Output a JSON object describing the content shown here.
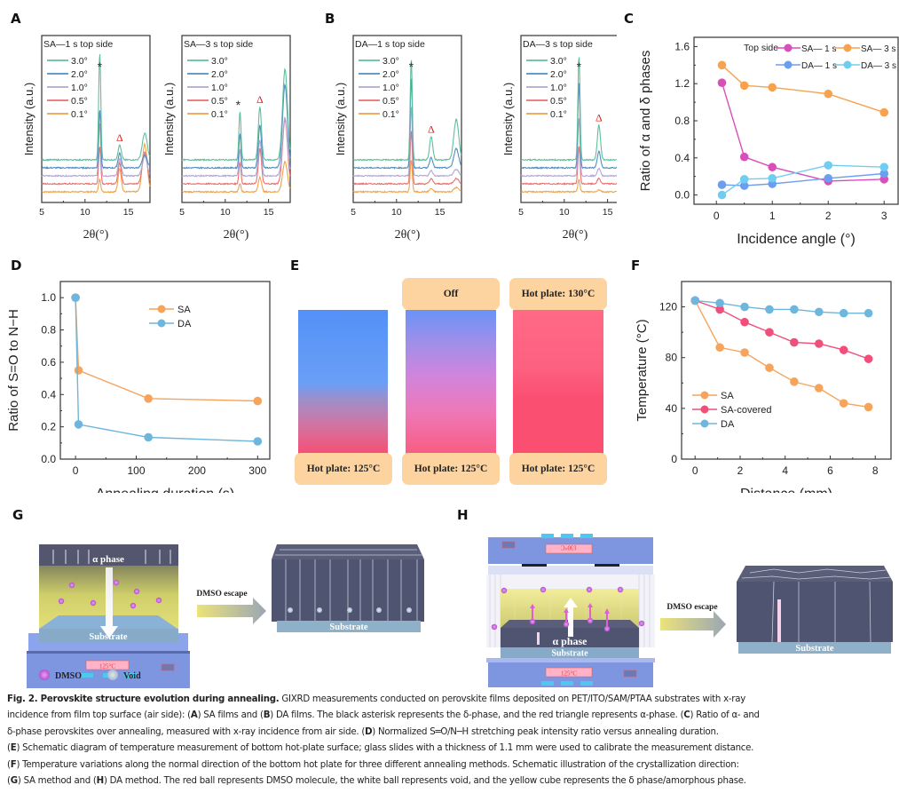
{
  "panels": {
    "A": "A",
    "B": "B",
    "C": "C",
    "D": "D",
    "E": "E",
    "F": "F",
    "G": "G",
    "H": "H"
  },
  "xrd_common": {
    "xlabel": "2θ(°)",
    "ylabel": "Intensity (a.u.)",
    "xticks": [
      "5",
      "10",
      "15"
    ],
    "legend": [
      {
        "label": "3.0°",
        "color": "#5fbf9c"
      },
      {
        "label": "2.0°",
        "color": "#4f8fc0"
      },
      {
        "label": "1.0°",
        "color": "#b3a6d6"
      },
      {
        "label": "0.5°",
        "color": "#e8716f"
      },
      {
        "label": "0.1°",
        "color": "#f1a24a"
      }
    ],
    "delta_marker": "*",
    "alpha_marker": "Δ"
  },
  "chart_data": [
    {
      "id": "A-left",
      "type": "line",
      "title": "SA—1 s top side",
      "xlabel": "2θ(°)",
      "ylabel": "Intensity (a.u.)",
      "xlim": [
        5,
        17.5
      ],
      "peaks": {
        "delta_11.7": [
          0.12,
          0.35,
          0.5,
          0.55,
          1.0
        ],
        "alpha_14.0": [
          0.22,
          0.2,
          0.16,
          0.14,
          0.14
        ],
        "17": [
          0.45,
          0.3,
          0.18,
          0.12,
          0.25
        ]
      },
      "series_order": [
        "0.1°",
        "0.5°",
        "1.0°",
        "2.0°",
        "3.0°"
      ]
    },
    {
      "id": "A-right",
      "type": "line",
      "title": "SA—3 s top side",
      "xlabel": "2θ(°)",
      "ylabel": "Intensity (a.u.)",
      "xlim": [
        5,
        17.5
      ],
      "peaks": {
        "delta_11.7": [
          0.08,
          0.2,
          0.25,
          0.32,
          0.45
        ],
        "alpha_14.0": [
          0.14,
          0.33,
          0.33,
          0.4,
          0.5
        ],
        "17": [
          0.28,
          0.6,
          0.55,
          0.78,
          0.85
        ]
      },
      "series_order": [
        "0.1°",
        "0.5°",
        "1.0°",
        "2.0°",
        "3.0°"
      ]
    },
    {
      "id": "B-left",
      "type": "line",
      "title": "DA—1 s top side",
      "xlabel": "2θ(°)",
      "ylabel": "Intensity (a.u.)",
      "xlim": [
        5,
        17.5
      ],
      "peaks": {
        "delta_11.7": [
          0.3,
          0.5,
          0.65,
          0.85,
          0.95
        ],
        "alpha_14.0": [
          0.03,
          0.05,
          0.05,
          0.1,
          0.22
        ],
        "17": [
          0.04,
          0.05,
          0.06,
          0.18,
          0.38
        ]
      },
      "series_order": [
        "0.1°",
        "0.5°",
        "1.0°",
        "2.0°",
        "3.0°"
      ]
    },
    {
      "id": "B-right",
      "type": "line",
      "title": "DA—3 s top side",
      "xlabel": "2θ(°)",
      "ylabel": "Intensity (a.u.)",
      "xlim": [
        5,
        17.5
      ],
      "peaks": {
        "delta_11.7": [
          0.12,
          0.35,
          0.55,
          0.8,
          0.98
        ],
        "alpha_14.0": [
          0.02,
          0.05,
          0.07,
          0.16,
          0.33
        ],
        "17": [
          0.02,
          0.07,
          0.08,
          0.28,
          0.5
        ]
      },
      "series_order": [
        "0.1°",
        "0.5°",
        "1.0°",
        "2.0°",
        "3.0°"
      ]
    },
    {
      "id": "C",
      "type": "line",
      "xlabel": "Incidence angle (°)",
      "ylabel": "Ratio of α and δ phases",
      "xlim": [
        -0.4,
        3.25
      ],
      "ylim": [
        -0.1,
        1.7
      ],
      "xticks": [
        0,
        1,
        2,
        3
      ],
      "yticks": [
        0.0,
        0.4,
        0.8,
        1.2,
        1.6
      ],
      "legend_title": "Top side",
      "x": [
        0.1,
        0.5,
        1,
        2,
        3
      ],
      "series": [
        {
          "name": "SA— 1 s",
          "color": "#d94fba",
          "values": [
            1.21,
            0.41,
            0.3,
            0.15,
            0.17
          ]
        },
        {
          "name": "SA— 3 s",
          "color": "#f6a24e",
          "values": [
            1.4,
            1.18,
            1.16,
            1.09,
            0.89
          ]
        },
        {
          "name": "DA— 1 s",
          "color": "#6b9ef0",
          "values": [
            0.11,
            0.1,
            0.12,
            0.18,
            0.23
          ]
        },
        {
          "name": "DA— 3 s",
          "color": "#70cdf2",
          "values": [
            0.0,
            0.17,
            0.18,
            0.32,
            0.3
          ]
        }
      ]
    },
    {
      "id": "D",
      "type": "line",
      "xlabel": "Annealing duration (s)",
      "ylabel": "Ratio of S=O to N−H",
      "xlim": [
        -25,
        320
      ],
      "ylim": [
        0,
        1.1
      ],
      "xticks": [
        0,
        100,
        200,
        300
      ],
      "yticks": [
        0.0,
        0.2,
        0.4,
        0.6,
        0.8,
        1.0
      ],
      "series": [
        {
          "name": "SA",
          "color": "#f6a45b",
          "x": [
            0,
            5,
            120,
            300
          ],
          "values": [
            1.0,
            0.55,
            0.375,
            0.36
          ]
        },
        {
          "name": "DA",
          "color": "#6fb6dc",
          "x": [
            0,
            5,
            120,
            300
          ],
          "values": [
            1.0,
            0.215,
            0.135,
            0.11
          ]
        }
      ]
    },
    {
      "id": "F",
      "type": "line",
      "xlabel": "Distance (mm)",
      "ylabel": "Temperature (°C)",
      "xlim": [
        -0.6,
        8.7
      ],
      "ylim": [
        0,
        140
      ],
      "xticks": [
        0,
        2,
        4,
        6,
        8
      ],
      "yticks": [
        0,
        40,
        80,
        120
      ],
      "x": [
        0,
        1.1,
        2.2,
        3.3,
        4.4,
        5.5,
        6.6,
        7.7
      ],
      "series": [
        {
          "name": "SA",
          "color": "#f6a45b",
          "values": [
            125,
            88,
            84,
            72,
            61,
            56,
            44,
            41
          ]
        },
        {
          "name": "SA-covered",
          "color": "#ef4f7a",
          "values": [
            125,
            118,
            108,
            100,
            92,
            91,
            86,
            79
          ]
        },
        {
          "name": "DA",
          "color": "#6fb6dc",
          "values": [
            125,
            123,
            120,
            118,
            118,
            116,
            115,
            115
          ]
        }
      ]
    }
  ],
  "panel_e": {
    "columns": [
      {
        "top": "",
        "bottom": "Hot plate: 125°C"
      },
      {
        "top": "Off",
        "bottom": "Hot plate: 125°C"
      },
      {
        "top": "Hot plate: 130°C",
        "bottom": "Hot plate: 125°C"
      }
    ]
  },
  "panel_g": {
    "phase_label": "α phase",
    "substrate": "Substrate",
    "arrow_label": "DMSO escape",
    "result_substrate": "Substrate",
    "display": "125°C",
    "legend": [
      {
        "label": "DMSO",
        "color": "#c068d8"
      },
      {
        "label": "Void",
        "color": "#b9cad8"
      }
    ]
  },
  "panel_h": {
    "phase_label": "α phase",
    "substrate": "Substrate",
    "arrow_label": "DMSO escape",
    "result_substrate": "Substrate",
    "display_top": "130°C",
    "display_bottom": "125°C"
  },
  "caption": {
    "title": "Fig. 2. Perovskite structure evolution during annealing.",
    "lines": [
      " GIXRD measurements conducted on perovskite films deposited on PET/ITO/SAM/PTAA substrates with x-ray",
      "incidence from film top surface (air side): (A) SA films and (B) DA films. The black asterisk represents the δ-phase, and the red triangle represents α-phase. (C) Ratio of α- and",
      "δ-phase perovskites over annealing, measured with x-ray incidence from air side. (D) Normalized S═O/N─H stretching peak intensity ratio versus annealing duration.",
      "(E) Schematic diagram of temperature measurement of bottom hot-plate surface; glass slides with a thickness of 1.1 mm were used to calibrate the measurement distance.",
      "(F) Temperature variations along the normal direction of the bottom hot plate for three different annealing methods. Schematic illustration of the crystallization direction:",
      "(G) SA method and (H) DA method. The red ball represents DMSO molecule, the white ball represents void, and the yellow cube represents the δ phase/amorphous phase."
    ]
  }
}
